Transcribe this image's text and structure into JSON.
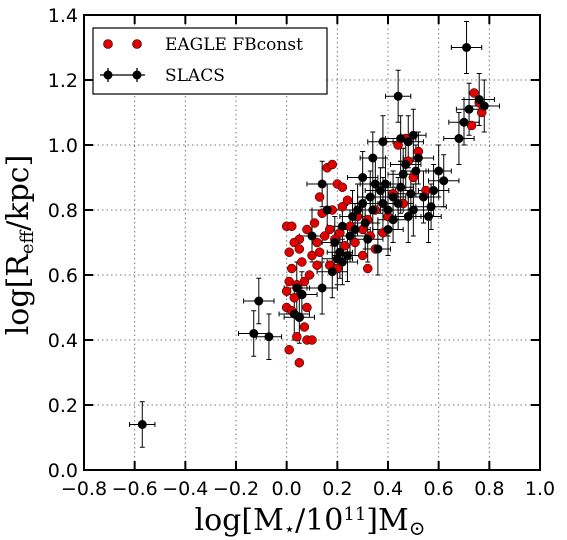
{
  "chart_data": {
    "type": "scatter",
    "xlim": [
      -0.8,
      1.0
    ],
    "ylim": [
      0.0,
      1.4
    ],
    "xticks": [
      "−0.8",
      "−0.6",
      "−0.4",
      "−0.2",
      "0.0",
      "0.2",
      "0.4",
      "0.6",
      "0.8",
      "1.0"
    ],
    "yticks": [
      "0.0",
      "0.2",
      "0.4",
      "0.6",
      "0.8",
      "1.0",
      "1.2",
      "1.4"
    ],
    "xlabel": "log[M⋆/10¹¹]M⊙",
    "ylabel": "log[R_eff/kpc]",
    "grid": true,
    "legend_position": "top-left",
    "colors": {
      "eagle": "#e00000",
      "slacs": "#000000"
    },
    "series": [
      {
        "name": "EAGLE FBconst",
        "marker": "circle",
        "points": [
          [
            0.16,
            0.93
          ],
          [
            0.18,
            0.94
          ],
          [
            0.2,
            0.88
          ],
          [
            0.22,
            0.87
          ],
          [
            0.13,
            0.84
          ],
          [
            0.18,
            0.8
          ],
          [
            0.22,
            0.81
          ],
          [
            0.24,
            0.83
          ],
          [
            0.14,
            0.79
          ],
          [
            0.11,
            0.76
          ],
          [
            0.17,
            0.74
          ],
          [
            0.21,
            0.73
          ],
          [
            0.25,
            0.75
          ],
          [
            0.28,
            0.78
          ],
          [
            0.32,
            0.77
          ],
          [
            0.35,
            0.8
          ],
          [
            0.4,
            0.78
          ],
          [
            0.3,
            0.74
          ],
          [
            0.33,
            0.72
          ],
          [
            0.38,
            0.73
          ],
          [
            0.27,
            0.7
          ],
          [
            0.23,
            0.69
          ],
          [
            0.19,
            0.71
          ],
          [
            0.15,
            0.72
          ],
          [
            0.12,
            0.7
          ],
          [
            0.08,
            0.74
          ],
          [
            0.05,
            0.71
          ],
          [
            0.0,
            0.75
          ],
          [
            0.02,
            0.75
          ],
          [
            0.03,
            0.7
          ],
          [
            0.01,
            0.67
          ],
          [
            0.05,
            0.68
          ],
          [
            0.06,
            0.64
          ],
          [
            0.1,
            0.66
          ],
          [
            0.13,
            0.67
          ],
          [
            0.17,
            0.63
          ],
          [
            0.2,
            0.62
          ],
          [
            0.02,
            0.62
          ],
          [
            0.01,
            0.58
          ],
          [
            0.04,
            0.57
          ],
          [
            0.07,
            0.58
          ],
          [
            0.09,
            0.6
          ],
          [
            0.12,
            0.63
          ],
          [
            0.0,
            0.55
          ],
          [
            0.03,
            0.53
          ],
          [
            0.06,
            0.54
          ],
          [
            0.08,
            0.5
          ],
          [
            0.0,
            0.5
          ],
          [
            0.02,
            0.49
          ],
          [
            0.05,
            0.47
          ],
          [
            0.07,
            0.44
          ],
          [
            0.04,
            0.41
          ],
          [
            0.08,
            0.4
          ],
          [
            0.1,
            0.4
          ],
          [
            0.01,
            0.37
          ],
          [
            0.05,
            0.33
          ],
          [
            0.32,
            0.62
          ],
          [
            0.35,
            0.68
          ],
          [
            0.42,
            0.85
          ],
          [
            0.46,
            0.82
          ],
          [
            0.5,
            0.9
          ],
          [
            0.55,
            0.86
          ],
          [
            0.48,
            0.95
          ],
          [
            0.52,
            0.98
          ],
          [
            0.44,
            1.0
          ],
          [
            0.47,
            1.02
          ],
          [
            0.74,
            1.16
          ],
          [
            0.76,
            1.13
          ],
          [
            0.77,
            1.1
          ],
          [
            0.73,
            1.06
          ],
          [
            0.3,
            0.66
          ]
        ]
      },
      {
        "name": "SLACS",
        "marker": "circle-errorbar",
        "points": [
          [
            -0.57,
            0.14,
            0.05,
            0.07
          ],
          [
            -0.13,
            0.42,
            0.06,
            0.07
          ],
          [
            -0.11,
            0.52,
            0.06,
            0.07
          ],
          [
            -0.07,
            0.41,
            0.05,
            0.07
          ],
          [
            0.03,
            0.48,
            0.06,
            0.08
          ],
          [
            0.05,
            0.47,
            0.06,
            0.08
          ],
          [
            0.06,
            0.54,
            0.06,
            0.07
          ],
          [
            0.04,
            0.56,
            0.05,
            0.08
          ],
          [
            0.14,
            0.56,
            0.06,
            0.08
          ],
          [
            0.18,
            0.61,
            0.06,
            0.08
          ],
          [
            0.2,
            0.65,
            0.06,
            0.08
          ],
          [
            0.21,
            0.67,
            0.05,
            0.08
          ],
          [
            0.22,
            0.64,
            0.06,
            0.07
          ],
          [
            0.24,
            0.66,
            0.06,
            0.08
          ],
          [
            0.19,
            0.7,
            0.05,
            0.08
          ],
          [
            0.25,
            0.72,
            0.06,
            0.08
          ],
          [
            0.22,
            0.75,
            0.06,
            0.07
          ],
          [
            0.26,
            0.78,
            0.05,
            0.08
          ],
          [
            0.28,
            0.8,
            0.06,
            0.08
          ],
          [
            0.3,
            0.82,
            0.06,
            0.07
          ],
          [
            0.31,
            0.76,
            0.05,
            0.08
          ],
          [
            0.27,
            0.74,
            0.06,
            0.08
          ],
          [
            0.34,
            0.8,
            0.06,
            0.08
          ],
          [
            0.33,
            0.84,
            0.05,
            0.08
          ],
          [
            0.35,
            0.88,
            0.06,
            0.08
          ],
          [
            0.38,
            0.82,
            0.05,
            0.08
          ],
          [
            0.37,
            0.86,
            0.06,
            0.07
          ],
          [
            0.4,
            0.8,
            0.06,
            0.08
          ],
          [
            0.39,
            0.88,
            0.06,
            0.08
          ],
          [
            0.42,
            0.84,
            0.05,
            0.08
          ],
          [
            0.42,
            0.77,
            0.06,
            0.07
          ],
          [
            0.44,
            0.82,
            0.06,
            0.08
          ],
          [
            0.45,
            0.87,
            0.05,
            0.08
          ],
          [
            0.46,
            0.91,
            0.06,
            0.08
          ],
          [
            0.47,
            0.94,
            0.06,
            0.08
          ],
          [
            0.48,
            0.78,
            0.05,
            0.08
          ],
          [
            0.49,
            0.85,
            0.06,
            0.07
          ],
          [
            0.5,
            0.8,
            0.06,
            0.08
          ],
          [
            0.51,
            0.92,
            0.05,
            0.08
          ],
          [
            0.52,
            0.96,
            0.06,
            0.08
          ],
          [
            0.54,
            0.84,
            0.06,
            0.08
          ],
          [
            0.56,
            0.78,
            0.05,
            0.08
          ],
          [
            0.57,
            0.81,
            0.06,
            0.07
          ],
          [
            0.58,
            0.86,
            0.06,
            0.08
          ],
          [
            0.6,
            0.92,
            0.05,
            0.08
          ],
          [
            0.62,
            0.89,
            0.06,
            0.08
          ],
          [
            0.45,
            1.02,
            0.06,
            0.07
          ],
          [
            0.48,
            1.01,
            0.06,
            0.08
          ],
          [
            0.5,
            1.03,
            0.05,
            0.08
          ],
          [
            0.44,
            1.15,
            0.05,
            0.08
          ],
          [
            0.68,
            1.02,
            0.06,
            0.08
          ],
          [
            0.7,
            1.07,
            0.06,
            0.07
          ],
          [
            0.72,
            1.11,
            0.05,
            0.08
          ],
          [
            0.76,
            1.14,
            0.06,
            0.08
          ],
          [
            0.78,
            1.12,
            0.06,
            0.08
          ],
          [
            0.71,
            1.3,
            0.06,
            0.08
          ],
          [
            0.32,
            0.71,
            0.06,
            0.07
          ],
          [
            0.36,
            0.68,
            0.05,
            0.08
          ],
          [
            0.4,
            0.74,
            0.06,
            0.08
          ],
          [
            0.3,
            0.9,
            0.06,
            0.08
          ],
          [
            0.34,
            0.96,
            0.05,
            0.08
          ],
          [
            0.38,
            1.01,
            0.06,
            0.08
          ],
          [
            0.16,
            0.8,
            0.06,
            0.08
          ],
          [
            0.14,
            0.88,
            0.06,
            0.07
          ],
          [
            0.1,
            0.72,
            0.05,
            0.08
          ]
        ]
      }
    ]
  }
}
